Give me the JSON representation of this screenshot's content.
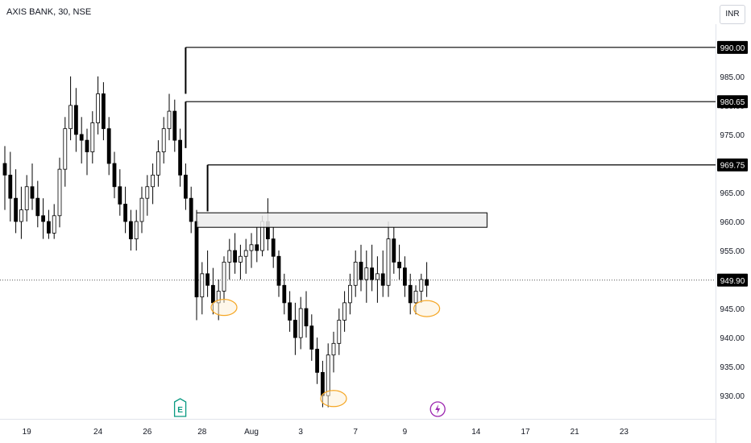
{
  "header": {
    "title": "AXIS BANK, 30, NSE",
    "currency_label": "INR"
  },
  "colors": {
    "candle": "#000000",
    "zone_fill": "#ececec",
    "marker_stroke": "#f5a623",
    "marker_fill": "#fdf0d5",
    "earnings_badge": "#089981",
    "dividend_badge": "#9c27b0",
    "axis_text": "#131722"
  },
  "events": {
    "earnings_label": "E",
    "dividend_icon": "lightning-icon"
  },
  "chart_data": {
    "type": "candlestick",
    "symbol": "AXIS BANK",
    "interval": "30",
    "exchange": "NSE",
    "ylim": [
      926,
      994
    ],
    "y_ticks": [
      930,
      935,
      940,
      945,
      950,
      955,
      960,
      965,
      970,
      975,
      980,
      985,
      990
    ],
    "x_ticks": [
      {
        "label": "19",
        "bar": 4
      },
      {
        "label": "24",
        "bar": 17
      },
      {
        "label": "26",
        "bar": 26
      },
      {
        "label": "28",
        "bar": 36
      },
      {
        "label": "Aug",
        "bar": 45
      },
      {
        "label": "3",
        "bar": 54
      },
      {
        "label": "7",
        "bar": 64
      },
      {
        "label": "9",
        "bar": 73
      },
      {
        "label": "14",
        "bar": 86
      },
      {
        "label": "17",
        "bar": 95
      },
      {
        "label": "21",
        "bar": 104
      },
      {
        "label": "23",
        "bar": 113
      }
    ],
    "bar_count": 129,
    "candles": [
      [
        970,
        973,
        962,
        968
      ],
      [
        968,
        972,
        960,
        964
      ],
      [
        964,
        969,
        958,
        960
      ],
      [
        960,
        966,
        957,
        962
      ],
      [
        962,
        968,
        960,
        966
      ],
      [
        966,
        970,
        962,
        964
      ],
      [
        964,
        967,
        959,
        961
      ],
      [
        961,
        964,
        957,
        960
      ],
      [
        960,
        962,
        957,
        958
      ],
      [
        958,
        963,
        957,
        961
      ],
      [
        961,
        971,
        959,
        969
      ],
      [
        969,
        978,
        966,
        976
      ],
      [
        976,
        985,
        974,
        980
      ],
      [
        980,
        983,
        972,
        975
      ],
      [
        975,
        978,
        970,
        974
      ],
      [
        974,
        976,
        968,
        972
      ],
      [
        972,
        979,
        970,
        977
      ],
      [
        977,
        985,
        975,
        982
      ],
      [
        982,
        984,
        974,
        976
      ],
      [
        976,
        978,
        968,
        970
      ],
      [
        970,
        972,
        964,
        966
      ],
      [
        966,
        969,
        961,
        963
      ],
      [
        963,
        966,
        958,
        960
      ],
      [
        960,
        962,
        955,
        957
      ],
      [
        957,
        962,
        955,
        960
      ],
      [
        960,
        966,
        958,
        964
      ],
      [
        964,
        968,
        961,
        966
      ],
      [
        966,
        970,
        963,
        968
      ],
      [
        968,
        974,
        966,
        972
      ],
      [
        972,
        978,
        970,
        976
      ],
      [
        976,
        982,
        974,
        979
      ],
      [
        979,
        981,
        972,
        974
      ],
      [
        974,
        976,
        966,
        968
      ],
      [
        968,
        970,
        962,
        964
      ],
      [
        964,
        966,
        958,
        960
      ],
      [
        960,
        962,
        943,
        947
      ],
      [
        947,
        953,
        944,
        951
      ],
      [
        951,
        955,
        947,
        949
      ],
      [
        949,
        952,
        944,
        946
      ],
      [
        946,
        950,
        943,
        948
      ],
      [
        948,
        954,
        946,
        953
      ],
      [
        953,
        957,
        950,
        955
      ],
      [
        955,
        958,
        951,
        953
      ],
      [
        953,
        956,
        950,
        954
      ],
      [
        954,
        957,
        951,
        955
      ],
      [
        955,
        958,
        952,
        956
      ],
      [
        956,
        959,
        953,
        955
      ],
      [
        955,
        961,
        954,
        960
      ],
      [
        960,
        964,
        955,
        957
      ],
      [
        957,
        959,
        952,
        954
      ],
      [
        954,
        955,
        947,
        949
      ],
      [
        949,
        951,
        944,
        946
      ],
      [
        946,
        948,
        941,
        943
      ],
      [
        943,
        946,
        937,
        940
      ],
      [
        940,
        947,
        938,
        945
      ],
      [
        945,
        948,
        940,
        942
      ],
      [
        942,
        944,
        936,
        938
      ],
      [
        938,
        940,
        932,
        934
      ],
      [
        934,
        936,
        928,
        930
      ],
      [
        930,
        939,
        928,
        937
      ],
      [
        937,
        941,
        934,
        939
      ],
      [
        939,
        945,
        937,
        943
      ],
      [
        943,
        948,
        941,
        946
      ],
      [
        946,
        951,
        944,
        949
      ],
      [
        949,
        955,
        947,
        953
      ],
      [
        953,
        956,
        948,
        950
      ],
      [
        950,
        955,
        946,
        952
      ],
      [
        952,
        956,
        948,
        950
      ],
      [
        950,
        954,
        946,
        951
      ],
      [
        951,
        955,
        947,
        949
      ],
      [
        949,
        960,
        947,
        957
      ],
      [
        957,
        959,
        951,
        953
      ],
      [
        953,
        956,
        950,
        952
      ],
      [
        952,
        954,
        947,
        949
      ],
      [
        949,
        951,
        944,
        946
      ],
      [
        946,
        949,
        944,
        948
      ],
      [
        948,
        951,
        946,
        950
      ],
      [
        950,
        953,
        947,
        949
      ]
    ],
    "levels": [
      {
        "label": "990.00",
        "value": 990.0,
        "from_bar": 33
      },
      {
        "label": "980.65",
        "value": 980.65,
        "from_bar": 33
      },
      {
        "label": "969.75",
        "value": 969.75,
        "from_bar": 37
      }
    ],
    "zone": {
      "top": 961.5,
      "bottom": 959.0,
      "from_bar": 35,
      "to_bar": 88
    },
    "last_price": {
      "label": "949.90",
      "value": 949.9
    },
    "markers": [
      {
        "bar": 40,
        "value": 945.2
      },
      {
        "bar": 60,
        "value": 929.5
      },
      {
        "bar": 77,
        "value": 945.0
      }
    ],
    "event_badges": [
      {
        "type": "earnings",
        "bar": 32
      },
      {
        "type": "dividend",
        "bar": 79
      }
    ]
  }
}
